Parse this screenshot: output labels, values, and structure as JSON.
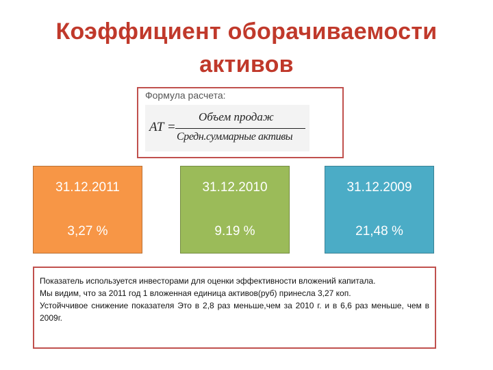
{
  "title": {
    "line1": "Коэффициент оборачиваемости",
    "line2": "активов"
  },
  "formula": {
    "caption": "Формула расчета:",
    "lhs": "AT =",
    "numerator": "Объем продаж",
    "denominator": "Средн.суммарные активы"
  },
  "cards": [
    {
      "date": "31.12.2011",
      "value": "3,27  %",
      "color": "#f79646"
    },
    {
      "date": "31.12.2010",
      "value": "9.19 %",
      "color": "#9bbb59"
    },
    {
      "date": "31.12.2009",
      "value": "21,48 %",
      "color": "#4bacc6"
    }
  ],
  "description": {
    "line1": "Показатель используется инвесторами для оценки эффективности вложений капитала.",
    "line2": "Мы видим, что за 2011 год 1 вложенная единица активов(руб) принесла 3,27 коп.",
    "line3": "Устойччивое снижение показателя Это в 2,8 раз меньше,чем за 2010 г. и в 6,6 раз меньше, чем в 2009г."
  }
}
